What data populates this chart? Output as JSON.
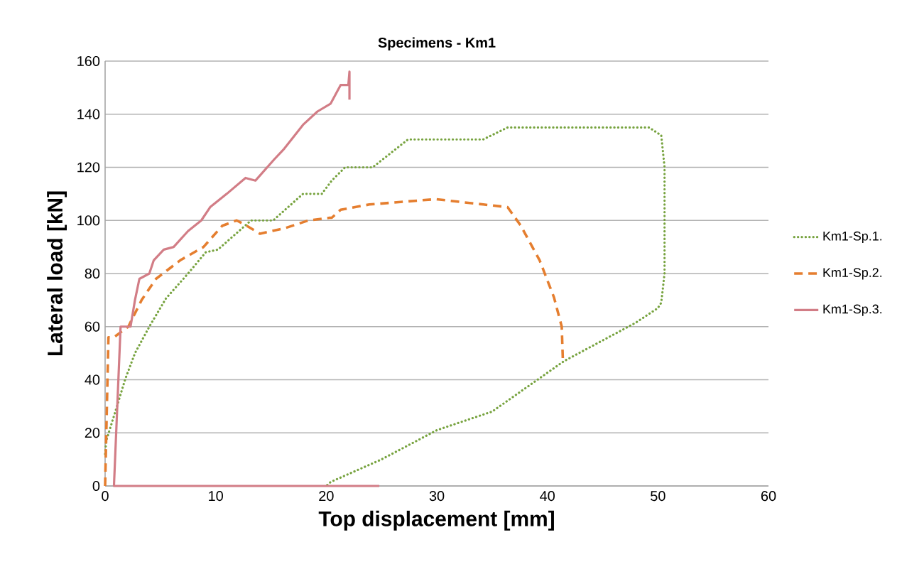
{
  "chart_data": {
    "type": "line",
    "title": "Specimens - Km1",
    "xlabel": "Top displacement [mm]",
    "ylabel": "Lateral load [kN]",
    "xlim": [
      0,
      60
    ],
    "xticks": [
      0,
      10,
      20,
      30,
      40,
      50,
      60
    ],
    "ylim": [
      0,
      160
    ],
    "yticks": [
      0,
      20,
      40,
      60,
      80,
      100,
      120,
      140,
      160
    ],
    "grid": "y",
    "legend": "right",
    "series": [
      {
        "name": "Km1-Sp.1.",
        "color": "#77a33f",
        "line_style": "dotted",
        "x": [
          0,
          0.1,
          1,
          1.8,
          2.7,
          4,
          5.5,
          7.5,
          9.1,
          10.2,
          13.2,
          15.2,
          17.9,
          19.6,
          20.5,
          21.7,
          24.2,
          27.4,
          34.2,
          36.4,
          40,
          44,
          49.2,
          50.3,
          50.6,
          50.6,
          50.3,
          50,
          48,
          41.5,
          35,
          30,
          25,
          20.4,
          20
        ],
        "values": [
          12,
          17,
          29,
          40,
          50,
          60,
          70.6,
          80,
          88,
          89,
          100,
          100,
          110,
          110,
          115,
          120,
          120,
          130.5,
          130.5,
          135,
          135,
          135,
          135,
          132,
          120,
          80,
          69,
          67,
          61.5,
          47,
          28,
          21,
          10,
          1.5,
          0
        ]
      },
      {
        "name": "Km1-Sp.2.",
        "color": "#e57e2f",
        "line_style": "dashed",
        "x": [
          0,
          0.3,
          0.8,
          2.1,
          3.3,
          4.6,
          6.8,
          8.9,
          10.6,
          11.9,
          12.8,
          14,
          16.2,
          18.4,
          20.3,
          20.5,
          21.3,
          23.9,
          29.9,
          34.2,
          36.4,
          37.6,
          39.3,
          40.6,
          41.3,
          41.4
        ],
        "values": [
          0,
          56,
          56,
          60,
          70,
          78,
          85,
          90,
          98,
          100,
          98,
          95,
          97,
          100,
          101,
          101,
          104,
          106,
          108,
          106,
          105,
          98,
          85,
          71,
          60,
          47.6
        ]
      },
      {
        "name": "Km1-Sp.3.",
        "color": "#d27d86",
        "line_style": "solid",
        "x": [
          24.8,
          0.8,
          0.8,
          1.4,
          2.3,
          2.7,
          3.1,
          4,
          4.4,
          5.3,
          6.2,
          7.5,
          8.7,
          9.5,
          11,
          12.7,
          13.6,
          15.3,
          16.2,
          17.9,
          19.2,
          20.4,
          21.3,
          22,
          22.1,
          22.1
        ],
        "values": [
          0,
          0,
          0,
          60,
          60,
          70,
          78,
          80,
          85,
          89,
          90,
          96,
          100,
          105,
          110,
          116,
          115,
          123,
          127,
          136,
          141,
          144,
          151,
          151,
          156,
          145.5
        ]
      }
    ]
  }
}
